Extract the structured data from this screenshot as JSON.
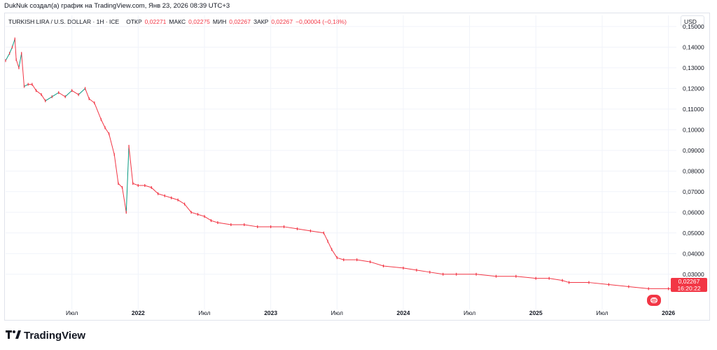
{
  "header": {
    "credit": "DukNuk создал(а) график на TradingView.com, Янв 23, 2026 08:39 UTC+3"
  },
  "legend": {
    "symbol": "TURKISH LIRA / U.S. DOLLAR · 1H · ICE",
    "open_label": "ОТКР",
    "open_value": "0,02271",
    "high_label": "МАКС",
    "high_value": "0,02275",
    "low_label": "МИН",
    "low_value": "0,02267",
    "close_label": "ЗАКР",
    "close_value": "0,02267",
    "change": "−0,00004 (−0,18%)"
  },
  "currency": "USD",
  "price_badge": {
    "price": "0,02267",
    "countdown": "16:20:22"
  },
  "brand": {
    "name": "TradingView",
    "icon": "tradingview-logo-icon"
  },
  "flag_icon": "us-flag-icon",
  "colors": {
    "down": "#f23645",
    "up": "#089981",
    "grid": "#f0f3fa"
  },
  "chart_data": {
    "type": "line",
    "y_ticks": [
      "0,15000",
      "0,14000",
      "0,13000",
      "0,12000",
      "0,11000",
      "0,10000",
      "0,09000",
      "0,08000",
      "0,07000",
      "0,06000",
      "0,05000",
      "0,04000",
      "0,03000"
    ],
    "x_ticks": [
      {
        "label": "Июл",
        "year": false,
        "t": 2021.5
      },
      {
        "label": "2022",
        "year": true,
        "t": 2022.0
      },
      {
        "label": "Июл",
        "year": false,
        "t": 2022.5
      },
      {
        "label": "2023",
        "year": true,
        "t": 2023.0
      },
      {
        "label": "Июл",
        "year": false,
        "t": 2023.5
      },
      {
        "label": "2024",
        "year": true,
        "t": 2024.0
      },
      {
        "label": "Июл",
        "year": false,
        "t": 2024.5
      },
      {
        "label": "2025",
        "year": true,
        "t": 2025.0
      },
      {
        "label": "Июл",
        "year": false,
        "t": 2025.5
      },
      {
        "label": "2026",
        "year": true,
        "t": 2026.0
      }
    ],
    "ylim": [
      0.015,
      0.152
    ],
    "xlim": [
      2021.0,
      2026.06
    ],
    "series": [
      {
        "values": [
          [
            2021.0,
            0.1335
          ],
          [
            2021.03,
            0.137
          ],
          [
            2021.05,
            0.14
          ],
          [
            2021.07,
            0.144
          ],
          [
            2021.08,
            0.134
          ],
          [
            2021.1,
            0.13
          ],
          [
            2021.12,
            0.137
          ],
          [
            2021.14,
            0.121
          ],
          [
            2021.17,
            0.122
          ],
          [
            2021.2,
            0.122
          ],
          [
            2021.23,
            0.119
          ],
          [
            2021.27,
            0.117
          ],
          [
            2021.3,
            0.114
          ],
          [
            2021.35,
            0.116
          ],
          [
            2021.4,
            0.118
          ],
          [
            2021.45,
            0.116
          ],
          [
            2021.5,
            0.119
          ],
          [
            2021.55,
            0.117
          ],
          [
            2021.6,
            0.12
          ],
          [
            2021.63,
            0.115
          ],
          [
            2021.67,
            0.113
          ],
          [
            2021.72,
            0.105
          ],
          [
            2021.75,
            0.101
          ],
          [
            2021.78,
            0.098
          ],
          [
            2021.82,
            0.088
          ],
          [
            2021.85,
            0.074
          ],
          [
            2021.88,
            0.072
          ],
          [
            2021.91,
            0.06
          ],
          [
            2021.93,
            0.092
          ],
          [
            2021.96,
            0.074
          ],
          [
            2022.0,
            0.073
          ],
          [
            2022.05,
            0.073
          ],
          [
            2022.1,
            0.072
          ],
          [
            2022.15,
            0.069
          ],
          [
            2022.2,
            0.068
          ],
          [
            2022.25,
            0.067
          ],
          [
            2022.3,
            0.066
          ],
          [
            2022.35,
            0.064
          ],
          [
            2022.4,
            0.06
          ],
          [
            2022.45,
            0.059
          ],
          [
            2022.5,
            0.058
          ],
          [
            2022.55,
            0.056
          ],
          [
            2022.6,
            0.055
          ],
          [
            2022.7,
            0.054
          ],
          [
            2022.8,
            0.054
          ],
          [
            2022.9,
            0.053
          ],
          [
            2023.0,
            0.053
          ],
          [
            2023.1,
            0.053
          ],
          [
            2023.2,
            0.052
          ],
          [
            2023.3,
            0.051
          ],
          [
            2023.4,
            0.05
          ],
          [
            2023.43,
            0.046
          ],
          [
            2023.46,
            0.042
          ],
          [
            2023.5,
            0.038
          ],
          [
            2023.55,
            0.037
          ],
          [
            2023.65,
            0.037
          ],
          [
            2023.75,
            0.036
          ],
          [
            2023.85,
            0.034
          ],
          [
            2024.0,
            0.033
          ],
          [
            2024.1,
            0.032
          ],
          [
            2024.2,
            0.031
          ],
          [
            2024.3,
            0.03
          ],
          [
            2024.4,
            0.03
          ],
          [
            2024.55,
            0.03
          ],
          [
            2024.7,
            0.029
          ],
          [
            2024.85,
            0.029
          ],
          [
            2025.0,
            0.028
          ],
          [
            2025.1,
            0.028
          ],
          [
            2025.2,
            0.027
          ],
          [
            2025.25,
            0.026
          ],
          [
            2025.4,
            0.026
          ],
          [
            2025.55,
            0.025
          ],
          [
            2025.7,
            0.024
          ],
          [
            2025.85,
            0.023
          ],
          [
            2026.0,
            0.023
          ],
          [
            2026.06,
            0.0227
          ]
        ]
      }
    ]
  }
}
